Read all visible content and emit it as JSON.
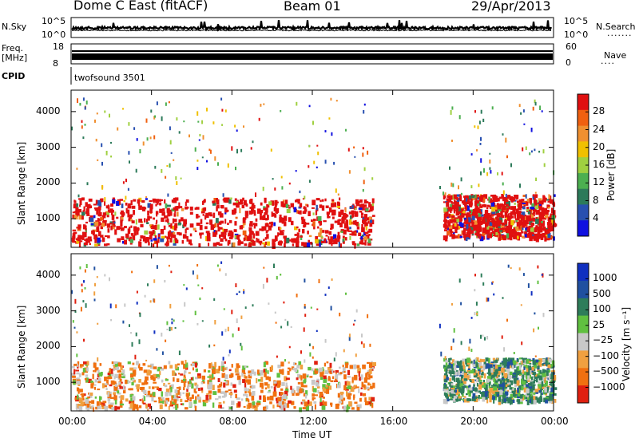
{
  "header": {
    "station": "Dome C East (fitACF)",
    "beam": "Beam 01",
    "date": "29/Apr/2013"
  },
  "top_panels": {
    "nsky_label": "N.Sky",
    "nsky_ticks": [
      "10^5",
      "10^0"
    ],
    "nsearch_label": "N.Search",
    "nsearch_ticks": [
      "10^5",
      "10^0"
    ],
    "freq_label_1": "Freq.",
    "freq_label_2": "[MHz]",
    "freq_ticks": [
      "18",
      "8"
    ],
    "nave_label": "Nave",
    "nave_ticks": [
      "60",
      "0"
    ],
    "cpid_label": "CPID",
    "cpid_value": "twofsound 3501"
  },
  "colors": {
    "power_scale": [
      "#1010e0",
      "#2850b0",
      "#2c7a5a",
      "#4caf50",
      "#a0d040",
      "#f0c000",
      "#f09030",
      "#f06010",
      "#e01010"
    ],
    "velocity_scale": [
      "#1030c0",
      "#2050a0",
      "#2e7d5a",
      "#60c040",
      "#c8c8c8",
      "#f0a040",
      "#f07010",
      "#e02010"
    ]
  },
  "chart_data": [
    {
      "type": "heatmap",
      "title": "Power",
      "xlabel": "",
      "ylabel": "Slant Range [km]",
      "x_ticks": [
        "00:00",
        "04:00",
        "08:00",
        "12:00",
        "16:00",
        "20:00",
        "00:00"
      ],
      "y_ticks": [
        1000,
        2000,
        3000,
        4000
      ],
      "ylim": [
        200,
        4600
      ],
      "colorbar_label": "Power [dB]",
      "colorbar_ticks": [
        "28",
        "24",
        "20",
        "16",
        "12",
        "8",
        "4"
      ],
      "regions": [
        {
          "x_start_h": 0.0,
          "x_end_h": 15.0,
          "r_min": 300,
          "r_max": 1600,
          "level": "high"
        },
        {
          "x_start_h": 18.5,
          "x_end_h": 24.0,
          "r_min": 500,
          "r_max": 1700,
          "level": "high"
        }
      ]
    },
    {
      "type": "heatmap",
      "title": "Velocity",
      "xlabel": "Time UT",
      "ylabel": "Slant Range [km]",
      "x_ticks": [
        "00:00",
        "04:00",
        "08:00",
        "12:00",
        "16:00",
        "20:00",
        "00:00"
      ],
      "y_ticks": [
        1000,
        2000,
        3000,
        4000
      ],
      "ylim": [
        200,
        4600
      ],
      "colorbar_label": "Velocity [m s⁻¹]",
      "colorbar_ticks": [
        "1000",
        "500",
        "100",
        "25",
        "−25",
        "−100",
        "−500",
        "−1000"
      ],
      "regions": [
        {
          "x_start_h": 0.0,
          "x_end_h": 15.0,
          "r_min": 300,
          "r_max": 1600,
          "level": "negative"
        },
        {
          "x_start_h": 18.5,
          "x_end_h": 24.0,
          "r_min": 500,
          "r_max": 1700,
          "level": "positive"
        }
      ]
    }
  ]
}
